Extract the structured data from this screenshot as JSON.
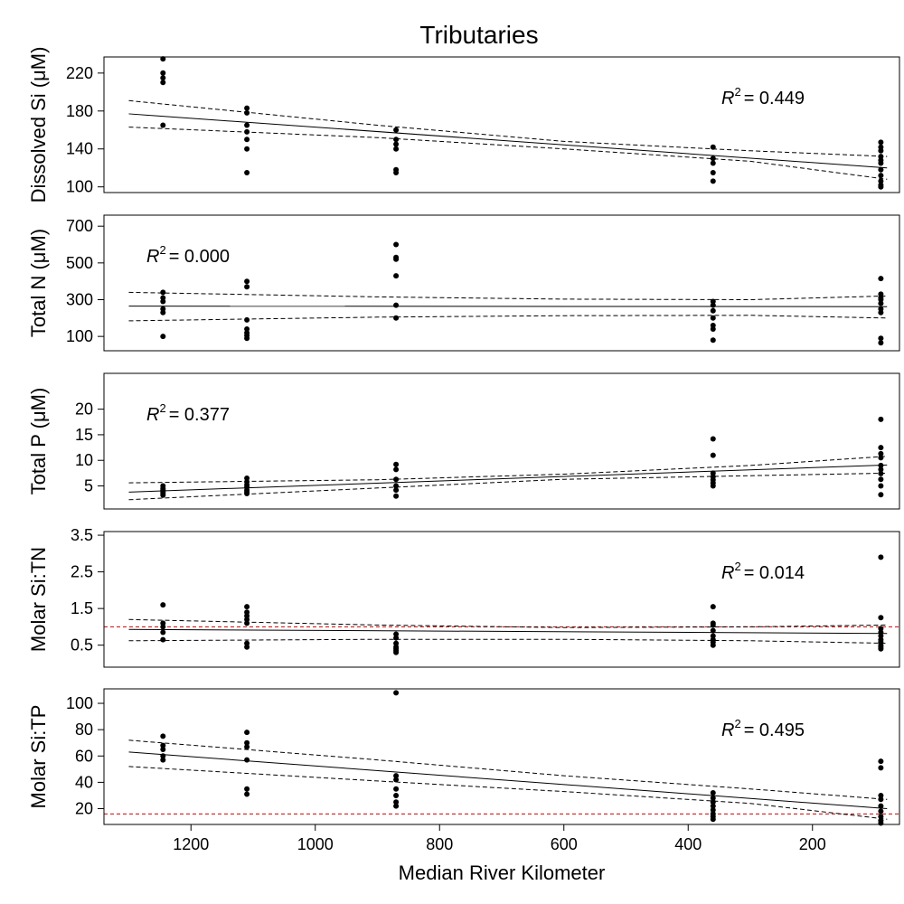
{
  "title": "Tributaries",
  "chart_data": {
    "type": "scatter",
    "title": "Tributaries",
    "xlabel": "Median River Kilometer",
    "xlim": [
      1340,
      60
    ],
    "xticks": [
      1200,
      1000,
      800,
      600,
      400,
      200
    ],
    "x_reversed": true,
    "x_positions": [
      1245,
      1110,
      870,
      360,
      90
    ],
    "panels": [
      {
        "id": "si",
        "ylabel": "Dissolved Si (μM)",
        "ylim": [
          94,
          237
        ],
        "yticks": [
          100,
          140,
          180,
          220
        ],
        "r2_label": "= 0.449",
        "r2_pos": "top-right",
        "points": [
          [
            1245,
            235
          ],
          [
            1245,
            220
          ],
          [
            1245,
            215
          ],
          [
            1245,
            210
          ],
          [
            1245,
            165
          ],
          [
            1110,
            183
          ],
          [
            1110,
            178
          ],
          [
            1110,
            165
          ],
          [
            1110,
            158
          ],
          [
            1110,
            150
          ],
          [
            1110,
            140
          ],
          [
            1110,
            115
          ],
          [
            870,
            160
          ],
          [
            870,
            150
          ],
          [
            870,
            145
          ],
          [
            870,
            140
          ],
          [
            870,
            118
          ],
          [
            870,
            115
          ],
          [
            360,
            142
          ],
          [
            360,
            130
          ],
          [
            360,
            125
          ],
          [
            360,
            115
          ],
          [
            360,
            106
          ],
          [
            90,
            147
          ],
          [
            90,
            142
          ],
          [
            90,
            138
          ],
          [
            90,
            132
          ],
          [
            90,
            128
          ],
          [
            90,
            125
          ],
          [
            90,
            118
          ],
          [
            90,
            112
          ],
          [
            90,
            106
          ],
          [
            90,
            102
          ],
          [
            90,
            100
          ]
        ],
        "fit": [
          [
            1300,
            177
          ],
          [
            80,
            120
          ]
        ],
        "ci_upper": [
          [
            1300,
            191
          ],
          [
            900,
            165
          ],
          [
            600,
            148
          ],
          [
            300,
            138
          ],
          [
            80,
            132
          ]
        ],
        "ci_lower": [
          [
            1300,
            163
          ],
          [
            900,
            152
          ],
          [
            600,
            140
          ],
          [
            300,
            127
          ],
          [
            80,
            108
          ]
        ],
        "reference_line": null
      },
      {
        "id": "tn",
        "ylabel": "Total N (μM)",
        "ylim": [
          22,
          760
        ],
        "yticks": [
          100,
          300,
          500,
          700
        ],
        "r2_label": "= 0.000",
        "r2_pos": "top-left",
        "points": [
          [
            1245,
            340
          ],
          [
            1245,
            310
          ],
          [
            1245,
            290
          ],
          [
            1245,
            250
          ],
          [
            1245,
            230
          ],
          [
            1245,
            100
          ],
          [
            1110,
            400
          ],
          [
            1110,
            370
          ],
          [
            1110,
            190
          ],
          [
            1110,
            140
          ],
          [
            1110,
            120
          ],
          [
            1110,
            105
          ],
          [
            1110,
            90
          ],
          [
            870,
            600
          ],
          [
            870,
            530
          ],
          [
            870,
            520
          ],
          [
            870,
            430
          ],
          [
            870,
            270
          ],
          [
            870,
            200
          ],
          [
            360,
            290
          ],
          [
            360,
            270
          ],
          [
            360,
            240
          ],
          [
            360,
            200
          ],
          [
            360,
            160
          ],
          [
            360,
            140
          ],
          [
            360,
            80
          ],
          [
            90,
            415
          ],
          [
            90,
            330
          ],
          [
            90,
            310
          ],
          [
            90,
            300
          ],
          [
            90,
            280
          ],
          [
            90,
            250
          ],
          [
            90,
            230
          ],
          [
            90,
            90
          ],
          [
            90,
            65
          ]
        ],
        "fit": [
          [
            1300,
            265
          ],
          [
            80,
            262
          ]
        ],
        "ci_upper": [
          [
            1300,
            340
          ],
          [
            900,
            315
          ],
          [
            600,
            303
          ],
          [
            300,
            300
          ],
          [
            80,
            320
          ]
        ],
        "ci_lower": [
          [
            1300,
            185
          ],
          [
            900,
            205
          ],
          [
            600,
            213
          ],
          [
            300,
            215
          ],
          [
            80,
            200
          ]
        ],
        "reference_line": null
      },
      {
        "id": "tp",
        "ylabel": "Total P (μM)",
        "ylim": [
          0.5,
          27
        ],
        "yticks": [
          5,
          10,
          15,
          20
        ],
        "r2_label": "= 0.377",
        "r2_pos": "top-left",
        "points": [
          [
            1245,
            5.0
          ],
          [
            1245,
            4.5
          ],
          [
            1245,
            4.2
          ],
          [
            1245,
            3.8
          ],
          [
            1245,
            3.5
          ],
          [
            1245,
            3.2
          ],
          [
            1110,
            6.5
          ],
          [
            1110,
            5.8
          ],
          [
            1110,
            5.2
          ],
          [
            1110,
            4.8
          ],
          [
            1110,
            4.2
          ],
          [
            1110,
            3.8
          ],
          [
            1110,
            3.5
          ],
          [
            870,
            9.2
          ],
          [
            870,
            8.2
          ],
          [
            870,
            6.3
          ],
          [
            870,
            5.0
          ],
          [
            870,
            4.2
          ],
          [
            870,
            3.0
          ],
          [
            360,
            14.2
          ],
          [
            360,
            11.0
          ],
          [
            360,
            7.5
          ],
          [
            360,
            6.8
          ],
          [
            360,
            6.2
          ],
          [
            360,
            5.6
          ],
          [
            360,
            5.0
          ],
          [
            90,
            18.0
          ],
          [
            90,
            12.5
          ],
          [
            90,
            11.3
          ],
          [
            90,
            10.5
          ],
          [
            90,
            9.0
          ],
          [
            90,
            8.2
          ],
          [
            90,
            7.4
          ],
          [
            90,
            6.3
          ],
          [
            90,
            5.0
          ],
          [
            90,
            3.3
          ]
        ],
        "fit": [
          [
            1300,
            3.8
          ],
          [
            80,
            9.1
          ]
        ],
        "ci_upper": [
          [
            1300,
            5.6
          ],
          [
            900,
            6.2
          ],
          [
            600,
            7.3
          ],
          [
            300,
            9.0
          ],
          [
            80,
            10.8
          ]
        ],
        "ci_lower": [
          [
            1300,
            2.3
          ],
          [
            900,
            4.6
          ],
          [
            600,
            6.3
          ],
          [
            300,
            7.0
          ],
          [
            80,
            7.5
          ]
        ],
        "reference_line": null
      },
      {
        "id": "sitn",
        "ylabel": "Molar Si:TN",
        "ylim": [
          -0.1,
          3.6
        ],
        "yticks": [
          0.5,
          1.5,
          2.5,
          3.5
        ],
        "r2_label": "= 0.014",
        "r2_pos": "top-right",
        "points": [
          [
            1245,
            1.6
          ],
          [
            1245,
            1.1
          ],
          [
            1245,
            1.0
          ],
          [
            1245,
            0.85
          ],
          [
            1245,
            0.65
          ],
          [
            1110,
            1.55
          ],
          [
            1110,
            1.4
          ],
          [
            1110,
            1.3
          ],
          [
            1110,
            1.2
          ],
          [
            1110,
            1.1
          ],
          [
            1110,
            0.55
          ],
          [
            1110,
            0.45
          ],
          [
            870,
            0.8
          ],
          [
            870,
            0.7
          ],
          [
            870,
            0.55
          ],
          [
            870,
            0.45
          ],
          [
            870,
            0.4
          ],
          [
            870,
            0.35
          ],
          [
            870,
            0.3
          ],
          [
            360,
            1.55
          ],
          [
            360,
            1.1
          ],
          [
            360,
            1.05
          ],
          [
            360,
            0.9
          ],
          [
            360,
            0.75
          ],
          [
            360,
            0.65
          ],
          [
            360,
            0.58
          ],
          [
            360,
            0.5
          ],
          [
            90,
            2.9
          ],
          [
            90,
            1.25
          ],
          [
            90,
            0.95
          ],
          [
            90,
            0.85
          ],
          [
            90,
            0.75
          ],
          [
            90,
            0.65
          ],
          [
            90,
            0.58
          ],
          [
            90,
            0.5
          ],
          [
            90,
            0.45
          ],
          [
            90,
            0.4
          ]
        ],
        "fit": [
          [
            1300,
            0.93
          ],
          [
            80,
            0.82
          ]
        ],
        "ci_upper": [
          [
            1300,
            1.2
          ],
          [
            900,
            1.05
          ],
          [
            600,
            0.98
          ],
          [
            300,
            1.0
          ],
          [
            80,
            1.05
          ]
        ],
        "ci_lower": [
          [
            1300,
            0.62
          ],
          [
            900,
            0.66
          ],
          [
            600,
            0.66
          ],
          [
            300,
            0.62
          ],
          [
            80,
            0.55
          ]
        ],
        "reference_line": {
          "y": 1.0,
          "color": "#cc0000"
        }
      },
      {
        "id": "sitp",
        "ylabel": "Molar Si:TP",
        "ylim": [
          8,
          111
        ],
        "yticks": [
          20,
          40,
          60,
          80,
          100
        ],
        "r2_label": "= 0.495",
        "r2_pos": "top-right",
        "points": [
          [
            1245,
            75
          ],
          [
            1245,
            68
          ],
          [
            1245,
            65
          ],
          [
            1245,
            60
          ],
          [
            1245,
            57
          ],
          [
            1110,
            78
          ],
          [
            1110,
            70
          ],
          [
            1110,
            67
          ],
          [
            1110,
            57
          ],
          [
            1110,
            35
          ],
          [
            1110,
            31
          ],
          [
            870,
            108
          ],
          [
            870,
            45
          ],
          [
            870,
            42
          ],
          [
            870,
            35
          ],
          [
            870,
            30
          ],
          [
            870,
            25
          ],
          [
            870,
            22
          ],
          [
            360,
            32
          ],
          [
            360,
            28
          ],
          [
            360,
            25
          ],
          [
            360,
            22
          ],
          [
            360,
            19
          ],
          [
            360,
            16
          ],
          [
            360,
            14
          ],
          [
            360,
            12
          ],
          [
            90,
            56
          ],
          [
            90,
            51
          ],
          [
            90,
            30
          ],
          [
            90,
            27
          ],
          [
            90,
            22
          ],
          [
            90,
            18
          ],
          [
            90,
            14
          ],
          [
            90,
            11
          ],
          [
            90,
            9
          ]
        ],
        "fit": [
          [
            1300,
            63
          ],
          [
            80,
            20
          ]
        ],
        "ci_upper": [
          [
            1300,
            72
          ],
          [
            900,
            57
          ],
          [
            600,
            45
          ],
          [
            300,
            35
          ],
          [
            80,
            27
          ]
        ],
        "ci_lower": [
          [
            1300,
            52
          ],
          [
            900,
            41
          ],
          [
            600,
            33
          ],
          [
            300,
            24
          ],
          [
            80,
            12
          ]
        ],
        "reference_line": {
          "y": 16,
          "color": "#cc0000"
        }
      }
    ]
  }
}
